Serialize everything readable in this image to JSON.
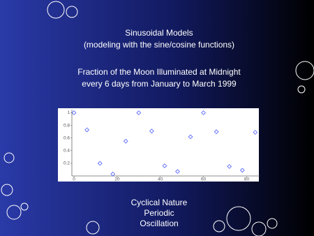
{
  "slide": {
    "heading": "Sinusoidal Models",
    "subheading": "(modeling with the sine/cosine functions)",
    "bullets": [
      "Cyclical Nature",
      "Periodic",
      "Oscillation"
    ]
  },
  "chart_data": {
    "type": "scatter",
    "title": "Fraction of the Moon Illuminated at Midnight",
    "subtitle": "every 6 days from January to March 1999",
    "x": [
      0,
      6,
      12,
      18,
      24,
      30,
      36,
      42,
      48,
      54,
      60,
      66,
      72,
      78,
      84
    ],
    "values": [
      1.0,
      0.73,
      0.2,
      0.03,
      0.55,
      1.0,
      0.71,
      0.16,
      0.07,
      0.62,
      1.0,
      0.7,
      0.15,
      0.09,
      0.69
    ],
    "color": "#4a5cff",
    "xlim": [
      -1,
      86
    ],
    "ylim": [
      0,
      1.05
    ],
    "xticks": [
      0,
      20,
      40,
      60,
      80
    ],
    "yticks": [
      0.2,
      0.4,
      0.6,
      0.8,
      1
    ]
  }
}
